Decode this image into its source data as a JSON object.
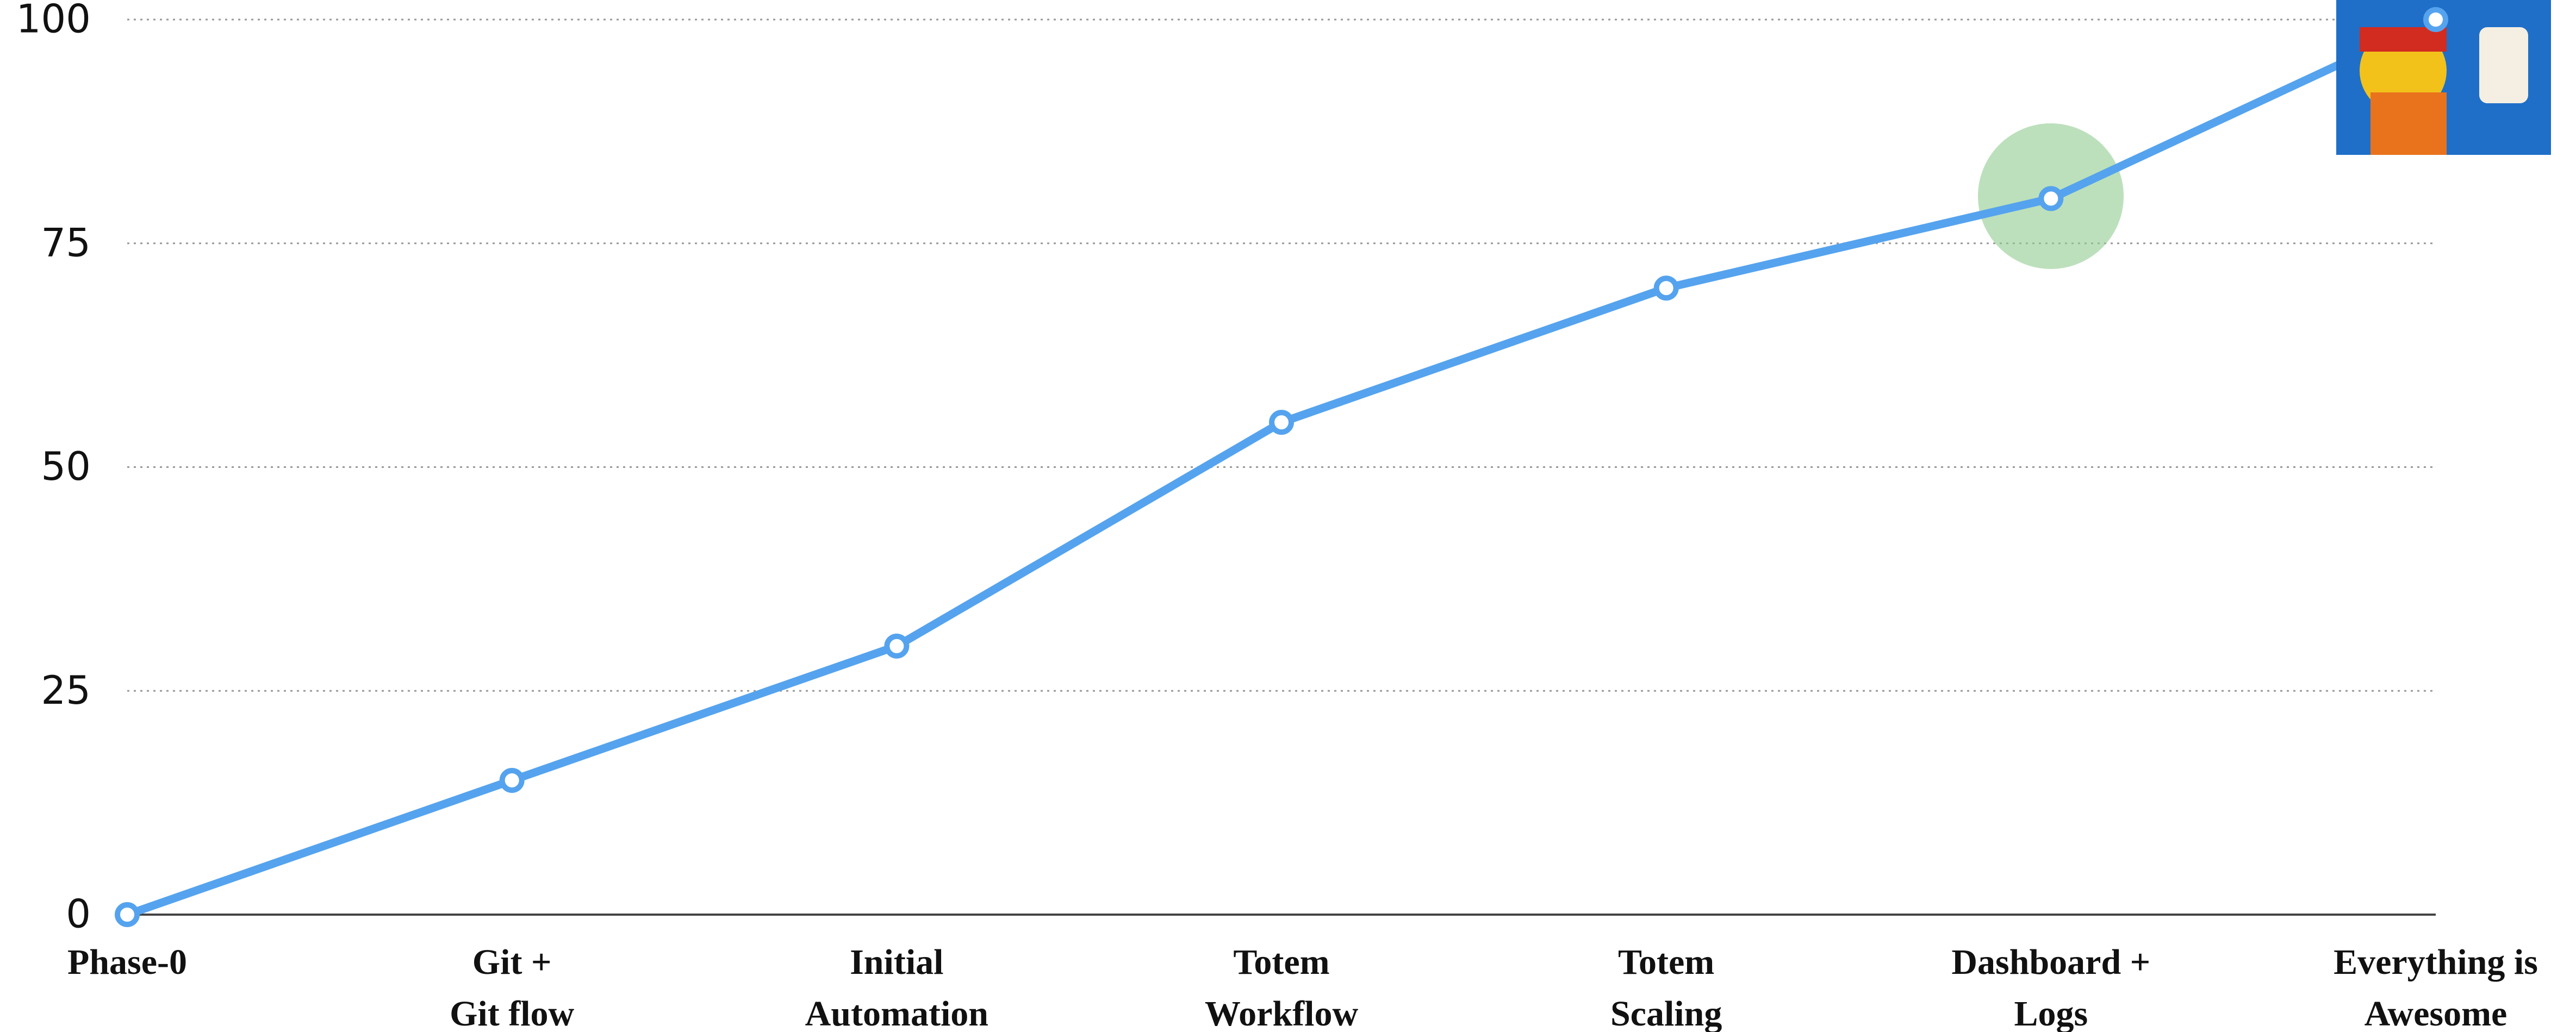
{
  "chart_data": {
    "type": "line",
    "categories": [
      "Phase-0",
      "Git +\nGit flow",
      "Initial\nAutomation",
      "Totem\nWorkflow",
      "Totem\nScaling",
      "Dashboard +\nLogs",
      "Everything is\nAwesome"
    ],
    "series": [
      {
        "color": "#55a3ee",
        "values": [
          0,
          15,
          30,
          55,
          70,
          80,
          100
        ]
      }
    ],
    "ylim": [
      0,
      100
    ],
    "yticks": [
      0,
      25,
      50,
      75,
      100
    ],
    "grid": true
  }
}
